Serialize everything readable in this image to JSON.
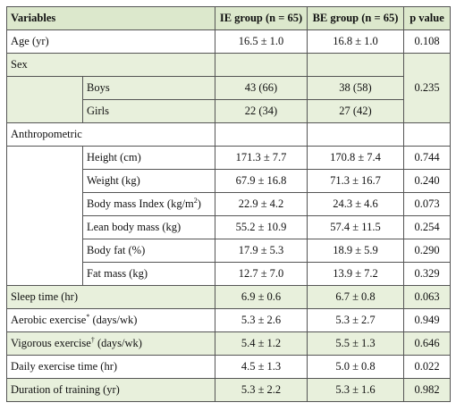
{
  "table": {
    "header": [
      "Variables",
      "IE group (n = 65)",
      "BE group (n = 65)",
      "p value"
    ],
    "rows": [
      {
        "label": "Age (yr)",
        "ie": "16.5 ± 1.0",
        "be": "16.8 ± 1.0",
        "p": "0.108"
      },
      {
        "label": "Sex",
        "p": "0.235",
        "sub": [
          {
            "label": "Boys",
            "ie": "43 (66)",
            "be": "38 (58)"
          },
          {
            "label": "Girls",
            "ie": "22 (34)",
            "be": "27 (42)"
          }
        ]
      },
      {
        "label": "Anthropometric",
        "sub": [
          {
            "label": "Height (cm)",
            "ie": "171.3 ± 7.7",
            "be": "170.8 ± 7.4",
            "p": "0.744"
          },
          {
            "label": "Weight (kg)",
            "ie": "67.9 ± 16.8",
            "be": "71.3 ± 16.7",
            "p": "0.240"
          },
          {
            "label": "Body mass Index (kg/m",
            "sup": "2",
            "label_end": ")",
            "ie": "22.9 ± 4.2",
            "be": "24.3 ± 4.6",
            "p": "0.073"
          },
          {
            "label": "Lean body mass (kg)",
            "ie": "55.2 ± 10.9",
            "be": "57.4 ± 11.5",
            "p": "0.254"
          },
          {
            "label": "Body fat (%)",
            "ie": "17.9 ± 5.3",
            "be": "18.9 ± 5.9",
            "p": "0.290"
          },
          {
            "label": "Fat mass (kg)",
            "ie": "12.7 ± 7.0",
            "be": "13.9 ± 7.2",
            "p": "0.329"
          }
        ]
      },
      {
        "label": "Sleep time (hr)",
        "ie": "6.9 ± 0.6",
        "be": "6.7 ± 0.8",
        "p": "0.063"
      },
      {
        "label": "Aerobic exercise",
        "sup": "*",
        "label_end": " (days/wk)",
        "ie": "5.3 ± 2.6",
        "be": "5.3 ± 2.7",
        "p": "0.949"
      },
      {
        "label": "Vigorous exercise",
        "sup": "†",
        "label_end": " (days/wk)",
        "ie": "5.4 ± 1.2",
        "be": "5.5 ± 1.3",
        "p": "0.646"
      },
      {
        "label": "Daily exercise time (hr)",
        "ie": "4.5 ± 1.3",
        "be": "5.0 ± 0.8",
        "p": "0.022"
      },
      {
        "label": "Duration of training (yr)",
        "ie": "5.3 ± 2.2",
        "be": "5.3 ± 1.6",
        "p": "0.982"
      }
    ]
  }
}
